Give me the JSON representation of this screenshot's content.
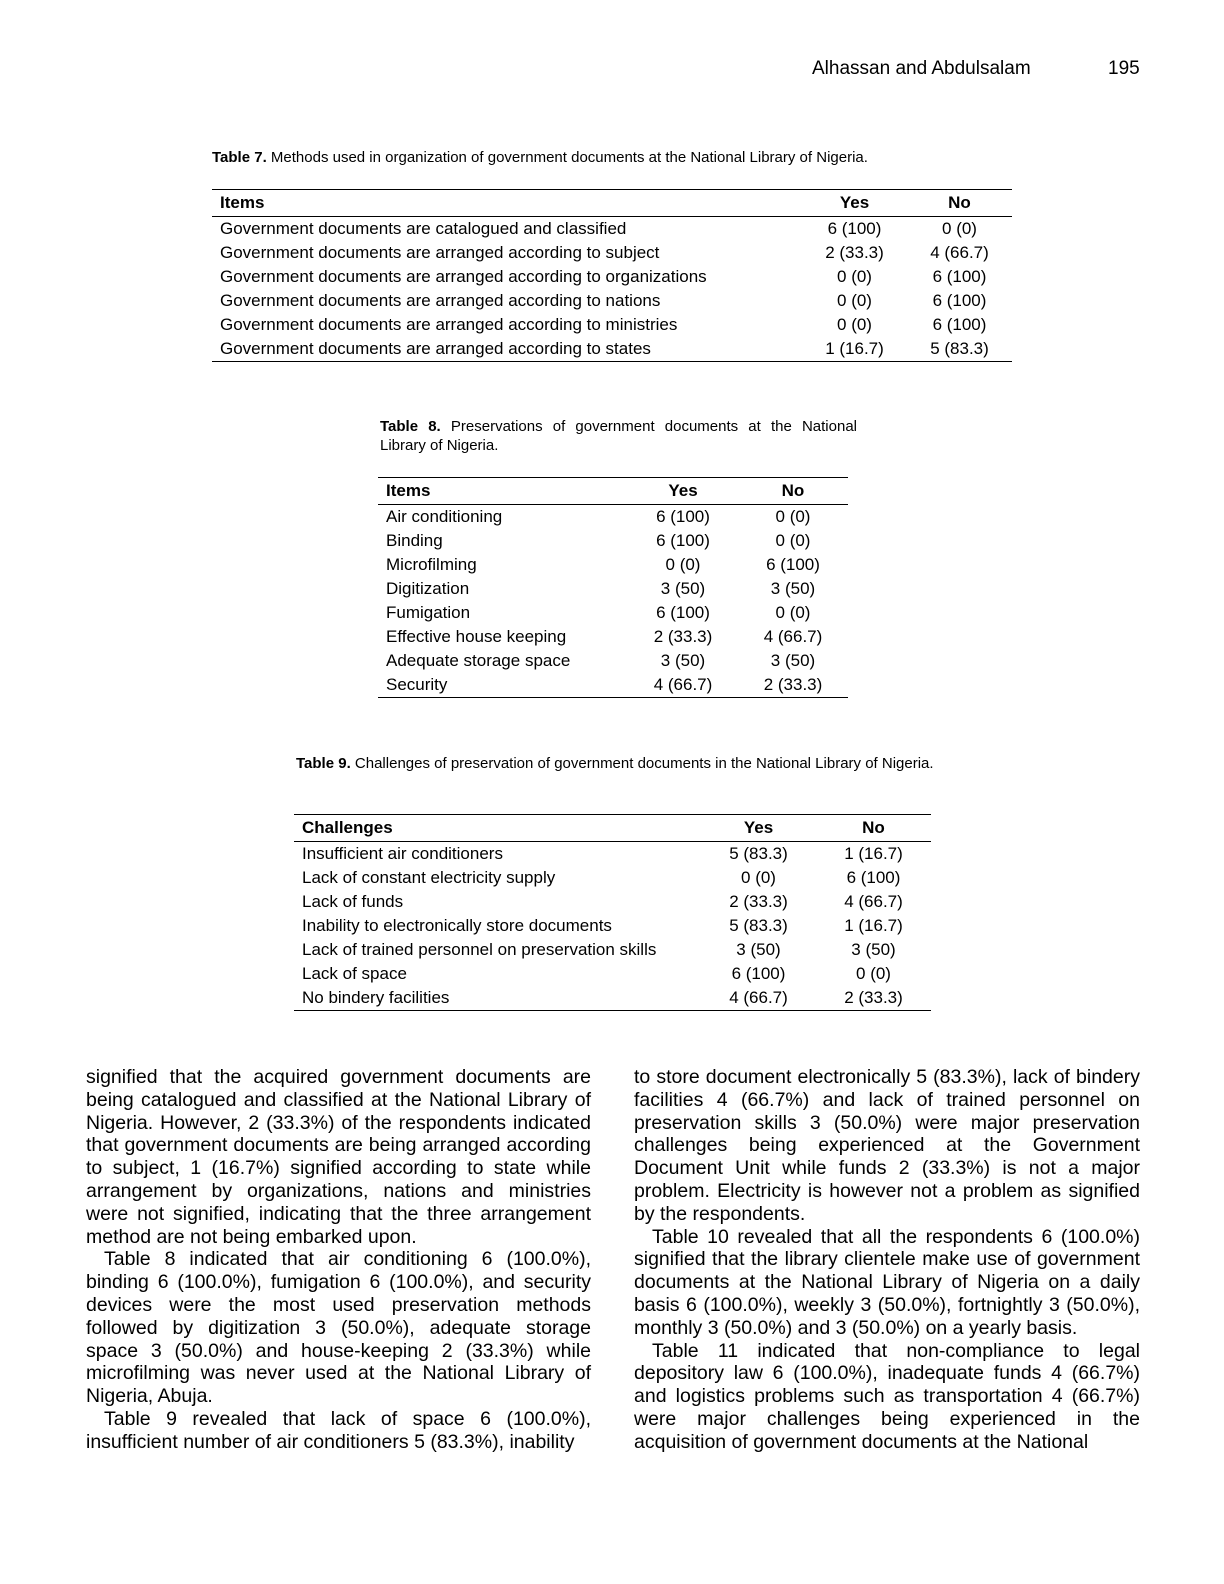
{
  "header": {
    "authors": "Alhassan and Abdulsalam",
    "page_number": "195"
  },
  "table7": {
    "caption_label": "Table 7.",
    "caption_text": " Methods used in organization of government documents at the National Library of Nigeria.",
    "columns": [
      "Items",
      "Yes",
      "No"
    ],
    "rows": [
      [
        "Government documents are catalogued and classified",
        "6 (100)",
        "0 (0)"
      ],
      [
        "Government documents are arranged according to subject",
        "2 (33.3)",
        "4 (66.7)"
      ],
      [
        "Government documents are arranged according to organizations",
        "0 (0)",
        "6 (100)"
      ],
      [
        "Government documents are arranged according to nations",
        "0 (0)",
        "6 (100)"
      ],
      [
        "Government documents are arranged according to ministries",
        "0 (0)",
        "6 (100)"
      ],
      [
        "Government documents are arranged according to states",
        "1 (16.7)",
        "5 (83.3)"
      ]
    ]
  },
  "table8": {
    "caption_label": "Table 8.",
    "caption_text": " Preservations of government documents at the National Library of Nigeria.",
    "columns": [
      "Items",
      "Yes",
      "No"
    ],
    "rows": [
      [
        "Air conditioning",
        "6 (100)",
        "0 (0)"
      ],
      [
        "Binding",
        "6 (100)",
        "0 (0)"
      ],
      [
        "Microfilming",
        "0 (0)",
        "6 (100)"
      ],
      [
        "Digitization",
        "3 (50)",
        "3 (50)"
      ],
      [
        "Fumigation",
        "6 (100)",
        "0 (0)"
      ],
      [
        "Effective house keeping",
        "2 (33.3)",
        "4 (66.7)"
      ],
      [
        "Adequate storage space",
        "3 (50)",
        "3 (50)"
      ],
      [
        "Security",
        "4 (66.7)",
        "2 (33.3)"
      ]
    ]
  },
  "table9": {
    "caption_label": "Table 9.",
    "caption_text": " Challenges of preservation of government documents in the National Library of Nigeria.",
    "columns": [
      "Challenges",
      "Yes",
      "No"
    ],
    "rows": [
      [
        "Insufficient air conditioners",
        "5 (83.3)",
        "1 (16.7)"
      ],
      [
        "Lack of constant electricity supply",
        "0 (0)",
        "6 (100)"
      ],
      [
        "Lack of funds",
        "2 (33.3)",
        "4 (66.7)"
      ],
      [
        "Inability to electronically store documents",
        "5 (83.3)",
        "1 (16.7)"
      ],
      [
        "Lack of trained personnel on preservation skills",
        "3 (50)",
        "3 (50)"
      ],
      [
        "Lack of space",
        "6 (100)",
        "0 (0)"
      ],
      [
        "No bindery facilities",
        "4 (66.7)",
        "2 (33.3)"
      ]
    ]
  },
  "body": {
    "left": [
      "signified that the acquired government documents are being catalogued and classified at the National Library of Nigeria. However, 2 (33.3%) of the respondents indicated that government documents are being arranged according to subject, 1 (16.7%) signified according to state while arrangement by organizations, nations and ministries were not signified, indicating that the three arrangement method are not being embarked upon.",
      "Table 8 indicated that air conditioning 6 (100.0%), binding 6 (100.0%), fumigation 6 (100.0%), and security devices were the most used preservation methods followed by digitization 3 (50.0%), adequate storage space 3 (50.0%) and house-keeping 2 (33.3%) while microfilming was never used at the National Library of Nigeria, Abuja.",
      "Table 9 revealed that lack of space 6 (100.0%), insufficient number of air conditioners 5 (83.3%), inability"
    ],
    "right": [
      "to store document electronically 5 (83.3%), lack of bindery facilities 4 (66.7%) and lack of trained personnel on preservation skills 3 (50.0%) were major preservation challenges being experienced at the Government Document Unit while funds 2 (33.3%) is not a major problem. Electricity is however not a problem as signified by the respondents.",
      "Table 10 revealed that all the respondents 6 (100.0%) signified that the library clientele make use of government documents at the National Library of Nigeria on a daily basis 6 (100.0%), weekly 3 (50.0%), fortnightly 3 (50.0%), monthly 3 (50.0%) and 3 (50.0%) on a yearly basis.",
      "Table 11 indicated that non-compliance to legal depository law 6 (100.0%), inadequate funds 4 (66.7%) and logistics problems such as transportation 4 (66.7%) were major challenges being experienced in the acquisition of government documents at the National"
    ]
  }
}
